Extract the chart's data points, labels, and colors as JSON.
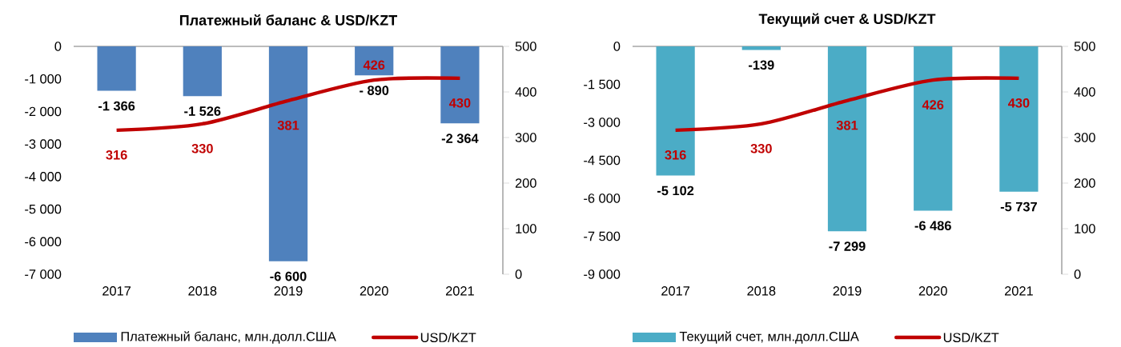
{
  "chart_data": [
    {
      "type": "bar",
      "title": "Платежный баланс & USD/KZT",
      "categories": [
        "2017",
        "2018",
        "2019",
        "2020",
        "2021"
      ],
      "series": [
        {
          "name": "Платежный баланс, млн.долл.США",
          "color": "#4f81bd",
          "values": [
            -1366,
            -1526,
            -6600,
            -890,
            -2364
          ],
          "value_labels": [
            "-1 366",
            "-1 526",
            "-6 600",
            "- 890",
            "-2 364"
          ]
        },
        {
          "name": "USD/KZT",
          "type": "line",
          "axis": "y2",
          "color": "#c00000",
          "values": [
            316,
            330,
            381,
            426,
            430
          ],
          "value_labels": [
            "316",
            "330",
            "381",
            "426",
            "430"
          ]
        }
      ],
      "ylim": [
        -7000,
        0
      ],
      "yticks": [
        {
          "value": -7000,
          "label": "-7 000"
        },
        {
          "value": -6000,
          "label": "-6 000"
        },
        {
          "value": -5000,
          "label": "-5 000"
        },
        {
          "value": -4000,
          "label": "-4 000"
        },
        {
          "value": -3000,
          "label": "-3 000"
        },
        {
          "value": -2000,
          "label": "-2 000"
        },
        {
          "value": -1000,
          "label": "-1 000"
        },
        0
      ],
      "y2lim": [
        0,
        500
      ],
      "y2ticks": [
        0,
        100,
        200,
        300,
        400,
        500
      ],
      "legend": "bottom"
    },
    {
      "type": "bar",
      "title": "Текущий счет & USD/KZT",
      "categories": [
        "2017",
        "2018",
        "2019",
        "2020",
        "2021"
      ],
      "series": [
        {
          "name": "Текущий счет, млн.долл.США",
          "color": "#4bacc6",
          "values": [
            -5102,
            -139,
            -7299,
            -6486,
            -5737
          ],
          "value_labels": [
            "-5 102",
            "-139",
            "-7 299",
            "-6 486",
            "-5 737"
          ]
        },
        {
          "name": "USD/KZT",
          "type": "line",
          "axis": "y2",
          "color": "#c00000",
          "values": [
            316,
            330,
            381,
            426,
            430
          ],
          "value_labels": [
            "316",
            "330",
            "381",
            "426",
            "430"
          ]
        }
      ],
      "ylim": [
        -9000,
        0
      ],
      "yticks": [
        {
          "value": -9000,
          "label": "-9 000"
        },
        {
          "value": -7500,
          "label": "-7 500"
        },
        {
          "value": -6000,
          "label": "-6 000"
        },
        {
          "value": -4500,
          "label": "-4 500"
        },
        {
          "value": -3000,
          "label": "-3 000"
        },
        {
          "value": -1500,
          "label": "-1 500"
        },
        0
      ],
      "y2lim": [
        0,
        500
      ],
      "y2ticks": [
        0,
        100,
        200,
        300,
        400,
        500
      ],
      "legend": "bottom"
    }
  ]
}
